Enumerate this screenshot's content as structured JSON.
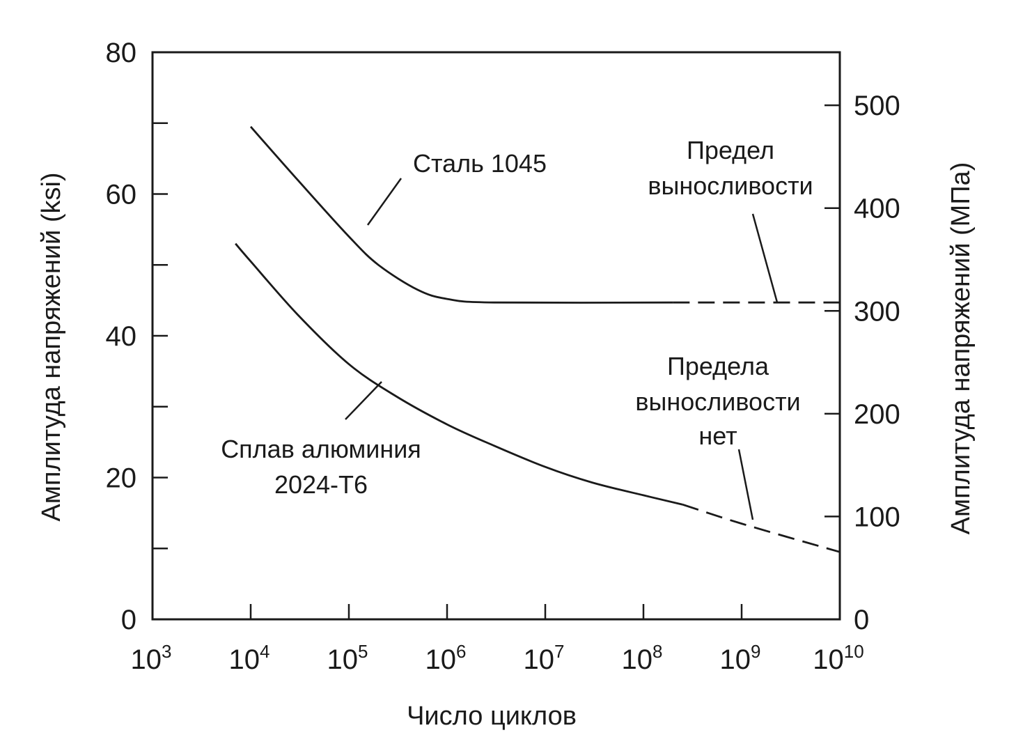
{
  "chart_data": {
    "type": "line",
    "xscale": "log",
    "xlim": [
      1000,
      10000000000
    ],
    "ylim_left": [
      0,
      80
    ],
    "ylim_right_mpa": [
      0,
      551.6
    ],
    "xlabel": "Число циклов",
    "ylabel_left": "Амплитуда напряжений (ksi)",
    "ylabel_right": "Амплитуда напряжений (МПа)",
    "x_ticks": [
      {
        "base": "10",
        "exp": "3",
        "value": 1000
      },
      {
        "base": "10",
        "exp": "4",
        "value": 10000
      },
      {
        "base": "10",
        "exp": "5",
        "value": 100000
      },
      {
        "base": "10",
        "exp": "6",
        "value": 1000000
      },
      {
        "base": "10",
        "exp": "7",
        "value": 10000000
      },
      {
        "base": "10",
        "exp": "8",
        "value": 100000000
      },
      {
        "base": "10",
        "exp": "9",
        "value": 1000000000
      },
      {
        "base": "10",
        "exp": "10",
        "value": 10000000000
      }
    ],
    "y_left_ticks": [
      {
        "label": "0",
        "value": 0
      },
      {
        "label": "",
        "value": 10
      },
      {
        "label": "20",
        "value": 20
      },
      {
        "label": "",
        "value": 30
      },
      {
        "label": "40",
        "value": 40
      },
      {
        "label": "",
        "value": 50
      },
      {
        "label": "60",
        "value": 60
      },
      {
        "label": "",
        "value": 70
      },
      {
        "label": "80",
        "value": 80
      }
    ],
    "y_right_ticks": [
      {
        "label": "0",
        "value": 0
      },
      {
        "label": "100",
        "value": 100
      },
      {
        "label": "200",
        "value": 200
      },
      {
        "label": "300",
        "value": 300
      },
      {
        "label": "400",
        "value": 400
      },
      {
        "label": "500",
        "value": 500
      }
    ],
    "series": [
      {
        "name": "Сталь 1045",
        "color": "#1a1a1a",
        "solid": [
          [
            10000,
            69.5
          ],
          [
            30000,
            62
          ],
          [
            100000,
            54
          ],
          [
            200000,
            50
          ],
          [
            500000,
            46.5
          ],
          [
            1000000,
            45.2
          ],
          [
            3000000,
            44.7
          ],
          [
            200000000,
            44.7
          ]
        ],
        "dashed": [
          [
            200000000,
            44.7
          ],
          [
            10000000000,
            44.7
          ]
        ]
      },
      {
        "name": "Сплав алюминия 2024-T6",
        "color": "#1a1a1a",
        "solid": [
          [
            7000,
            53
          ],
          [
            10000,
            50.5
          ],
          [
            30000,
            43
          ],
          [
            100000,
            36
          ],
          [
            300000,
            31.5
          ],
          [
            1000000,
            27.5
          ],
          [
            3000000,
            24.5
          ],
          [
            10000000,
            21.5
          ],
          [
            30000000,
            19.3
          ],
          [
            100000000,
            17.5
          ],
          [
            250000000,
            16.2
          ]
        ],
        "dashed": [
          [
            250000000,
            16.2
          ],
          [
            1000000000,
            13.5
          ],
          [
            10000000000,
            9.5
          ]
        ]
      }
    ],
    "annotations": {
      "steel_label": "Сталь 1045",
      "endurance_line1": "Предел",
      "endurance_line2": "выносливости",
      "aluminum_line1": "Сплав алюминия",
      "aluminum_line2": "2024-T6",
      "no_limit_line1": "Предела",
      "no_limit_line2": "выносливости",
      "no_limit_line3": "нет"
    },
    "grid": false,
    "legend": "none"
  }
}
